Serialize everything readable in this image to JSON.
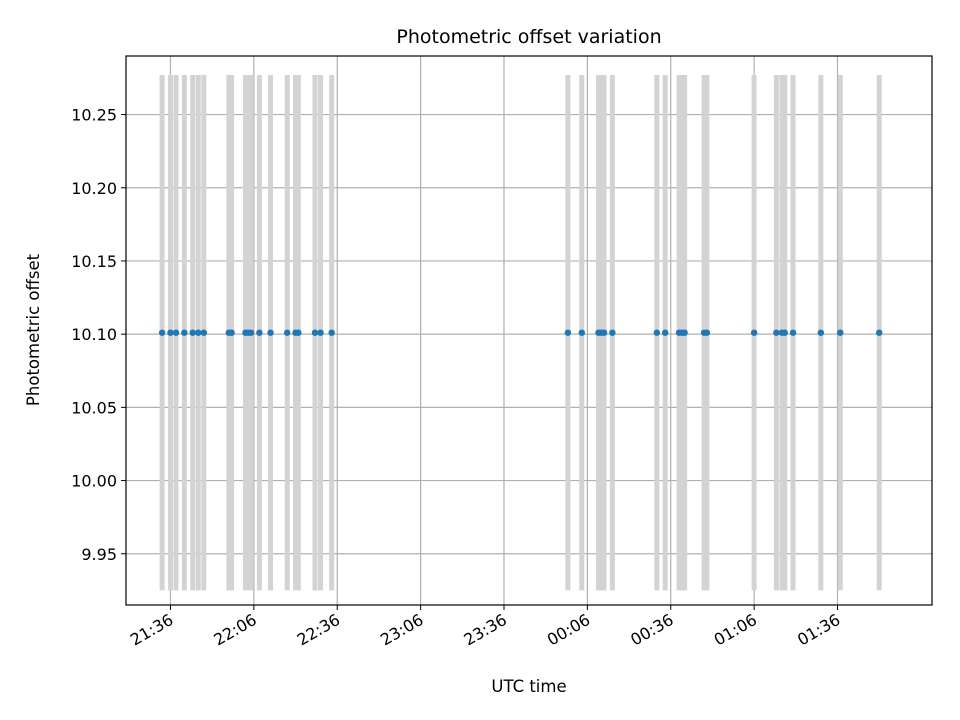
{
  "chart_data": {
    "type": "scatter",
    "title": "Photometric offset variation",
    "xlabel": "UTC time",
    "ylabel": "Photometric offset",
    "ylim": [
      9.915,
      10.29
    ],
    "xlim": [
      "21:20",
      "24:10 next day 02:10"
    ],
    "x_tick_labels": [
      "21:36",
      "22:06",
      "22:36",
      "23:06",
      "23:36",
      "00:06",
      "00:36",
      "01:06",
      "01:36"
    ],
    "y_tick_labels": [
      "9.95",
      "10.00",
      "10.05",
      "10.10",
      "10.15",
      "10.20",
      "10.25"
    ],
    "grid": true,
    "series": [
      {
        "marker_color": "#1f77b4",
        "errorbar_color": "#d3d3d3",
        "errorbar_range": [
          9.925,
          10.277
        ],
        "x": [
          "21:33",
          "21:36",
          "21:38",
          "21:41",
          "21:44",
          "21:46",
          "21:48",
          "21:57",
          "21:58",
          "22:03",
          "22:04",
          "22:05",
          "22:08",
          "22:12",
          "22:18",
          "22:21",
          "22:22",
          "22:28",
          "22:30",
          "22:34",
          "23:59",
          "00:04",
          "00:10",
          "00:11",
          "00:12",
          "00:15",
          "00:31",
          "00:34",
          "00:39",
          "00:40",
          "00:41",
          "00:48",
          "00:49",
          "01:06",
          "01:14",
          "01:16",
          "01:17",
          "01:20",
          "01:30",
          "01:37",
          "01:51"
        ],
        "y": [
          10.101,
          10.101,
          10.101,
          10.101,
          10.101,
          10.101,
          10.101,
          10.101,
          10.101,
          10.101,
          10.101,
          10.101,
          10.101,
          10.101,
          10.101,
          10.101,
          10.101,
          10.101,
          10.101,
          10.101,
          10.101,
          10.101,
          10.101,
          10.101,
          10.101,
          10.101,
          10.101,
          10.101,
          10.101,
          10.101,
          10.101,
          10.101,
          10.101,
          10.101,
          10.101,
          10.101,
          10.101,
          10.101,
          10.101,
          10.101,
          10.101
        ]
      }
    ]
  }
}
